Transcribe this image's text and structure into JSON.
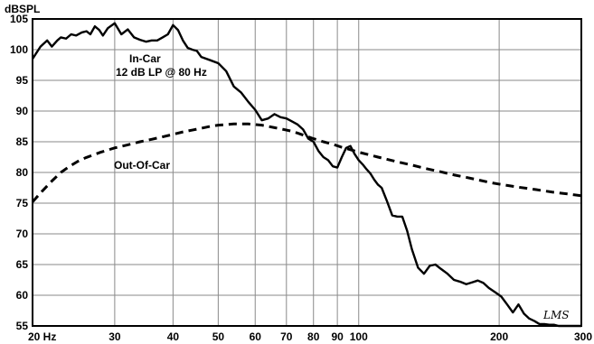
{
  "chart_data": {
    "type": "line",
    "xscale": "log",
    "xlim": [
      20,
      300
    ],
    "ylim": [
      55,
      105
    ],
    "ylabel": "dBSPL",
    "xlabel": "",
    "grid": true,
    "x_ticks": [
      20,
      30,
      40,
      50,
      60,
      70,
      80,
      90,
      100,
      200,
      300
    ],
    "x_tick_labels": [
      "20 Hz",
      "30",
      "40",
      "50",
      "60",
      "70",
      "80",
      "90",
      "100",
      "200",
      "300"
    ],
    "y_ticks": [
      55,
      60,
      65,
      70,
      75,
      80,
      85,
      90,
      95,
      100,
      105
    ],
    "y_tick_labels": [
      "55",
      "60",
      "65",
      "70",
      "75",
      "80",
      "85",
      "90",
      "95",
      "100",
      "105"
    ],
    "annotations": {
      "in_car_line1": "In-Car",
      "in_car_line2": "12 dB LP @ 80 Hz",
      "out_of_car": "Out-Of-Car",
      "signature": "LMS"
    },
    "series": [
      {
        "style": "solid",
        "x": [
          20,
          20.8,
          21.5,
          22,
          22.6,
          23,
          23.6,
          24.2,
          24.8,
          25.5,
          26.1,
          26.6,
          27.2,
          27.8,
          28.3,
          29,
          30,
          31,
          32,
          33,
          34,
          35,
          36,
          37,
          38,
          39,
          40,
          41,
          42,
          43,
          44,
          45,
          46,
          48,
          50,
          52,
          54,
          56,
          58,
          60,
          62,
          64,
          66,
          68,
          70,
          72,
          74,
          76,
          78,
          80,
          82,
          84,
          86,
          88,
          90,
          92,
          94,
          96,
          98,
          100,
          102,
          104,
          106,
          108,
          110,
          112,
          115,
          118,
          121,
          124,
          127,
          130,
          134,
          138,
          142,
          146,
          150,
          155,
          160,
          165,
          170,
          175,
          180,
          185,
          190,
          196,
          202,
          208,
          214,
          220,
          226,
          232,
          238,
          244,
          250,
          256,
          262,
          268,
          274,
          280,
          290,
          300
        ],
        "y": [
          98.5,
          100.5,
          101.5,
          100.5,
          101.5,
          102,
          101.8,
          102.5,
          102.3,
          102.8,
          103,
          102.5,
          103.8,
          103.2,
          102.3,
          103.5,
          104.3,
          102.5,
          103.3,
          102,
          101.6,
          101.3,
          101.5,
          101.5,
          102,
          102.5,
          104,
          103.2,
          101.5,
          100.3,
          100,
          99.8,
          98.8,
          98.3,
          97.8,
          96.5,
          94,
          93,
          91.5,
          90.2,
          88.5,
          88.8,
          89.5,
          89,
          88.8,
          88.3,
          87.8,
          87,
          85.5,
          85,
          83.5,
          82.5,
          82,
          81,
          80.8,
          82.5,
          84,
          84.3,
          83,
          82,
          81.3,
          80.5,
          79.8,
          78.8,
          78,
          77.5,
          75.3,
          73,
          72.8,
          72.8,
          70.5,
          67.5,
          64.5,
          63.5,
          64.8,
          65,
          64.3,
          63.5,
          62.5,
          62.2,
          61.8,
          62.1,
          62.4,
          62,
          61.2,
          60.5,
          59.8,
          58.5,
          57.2,
          58.5,
          57,
          56.2,
          55.8,
          55.3,
          55.3,
          55.2,
          55.2,
          55,
          55,
          55,
          55,
          55
        ]
      },
      {
        "name": "Out-Of-Car",
        "style": "dashed",
        "x": [
          20,
          21,
          22,
          23,
          24,
          25,
          26,
          28,
          30,
          32,
          34,
          36,
          38,
          40,
          42,
          44,
          46,
          48,
          50,
          52,
          54,
          56,
          58,
          60,
          62,
          64,
          66,
          68,
          70,
          72,
          74,
          76,
          78,
          80,
          84,
          88,
          92,
          96,
          100,
          110,
          120,
          130,
          140,
          150,
          160,
          170,
          180,
          190,
          200,
          220,
          240,
          260,
          280,
          300
        ],
        "y": [
          75.2,
          77,
          78.6,
          80,
          81,
          81.8,
          82.4,
          83.3,
          84,
          84.5,
          85,
          85.4,
          85.8,
          86.2,
          86.6,
          86.9,
          87.2,
          87.5,
          87.7,
          87.8,
          87.9,
          87.9,
          87.9,
          87.8,
          87.7,
          87.5,
          87.3,
          87.1,
          86.9,
          86.7,
          86.4,
          86.1,
          85.8,
          85.5,
          85,
          84.6,
          84.1,
          83.7,
          83.3,
          82.5,
          81.8,
          81.2,
          80.6,
          80.1,
          79.6,
          79.2,
          78.8,
          78.4,
          78.1,
          77.6,
          77.2,
          76.8,
          76.5,
          76.2
        ]
      }
    ]
  }
}
